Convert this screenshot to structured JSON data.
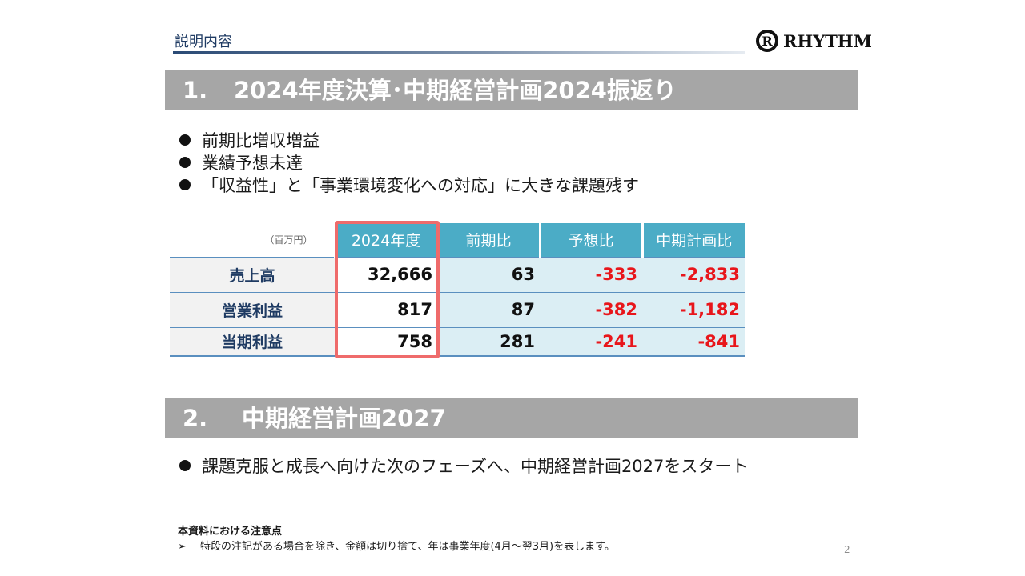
{
  "header": {
    "title": "説明内容",
    "logo_text": "RHYTHM",
    "logo_mark": "R"
  },
  "section1": {
    "number": "1.",
    "title": "2024年度決算･中期経営計画2024振返り",
    "bullets": [
      "前期比増収増益",
      "業績予想未達",
      "「収益性」と「事業環境変化への対応」に大きな課題残す"
    ]
  },
  "table": {
    "unit": "（百万円）",
    "headers": [
      "2024年度",
      "前期比",
      "予想比",
      "中期計画比"
    ],
    "rows": [
      {
        "label": "売上高",
        "values": [
          "32,666",
          "63",
          "-333",
          "-2,833"
        ]
      },
      {
        "label": "営業利益",
        "values": [
          "817",
          "87",
          "-382",
          "-1,182"
        ]
      },
      {
        "label": "当期利益",
        "values": [
          "758",
          "281",
          "-241",
          "-841"
        ]
      }
    ]
  },
  "section2": {
    "number": "2.",
    "title": "中期経営計画2027",
    "bullets": [
      "課題克服と成長へ向けた次のフェーズへ、中期経営計画2027をスタート"
    ]
  },
  "notes": {
    "title": "本資料における注意点",
    "marker": "➢",
    "text": "特段の注記がある場合を除き、金額は切り捨て、年は事業年度(4月～翌3月)を表します。"
  },
  "page_number": "2",
  "colors": {
    "band": "#a6a6a6",
    "table_header": "#4bacc6",
    "highlight": "#ef6b6b",
    "negative": "#e8161b",
    "label_text": "#1f3b63"
  }
}
